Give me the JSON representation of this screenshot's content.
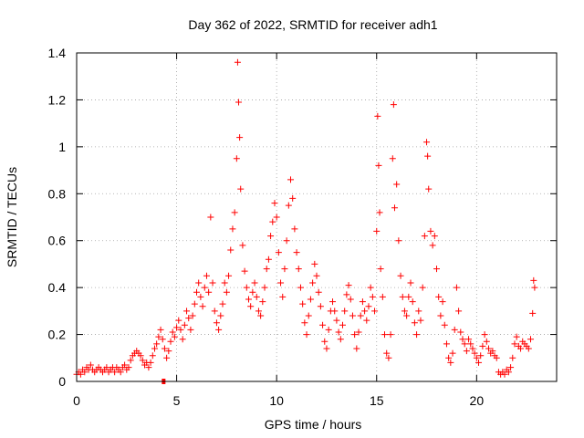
{
  "chart_data": {
    "type": "scatter",
    "title": "Day 362 of 2022, SRMTID for receiver adh1",
    "xlabel": "GPS time / hours",
    "ylabel": "SRMTID / TECUs",
    "xlim": [
      0,
      24
    ],
    "ylim": [
      0,
      1.4
    ],
    "x_ticks": [
      0,
      5,
      10,
      15,
      20
    ],
    "x_tick_labels": [
      "0",
      "5",
      "10",
      "15",
      "20"
    ],
    "y_ticks": [
      0,
      0.2,
      0.4,
      0.6,
      0.8,
      1.0,
      1.2,
      1.4
    ],
    "y_tick_labels": [
      "0",
      "0.2",
      "0.4",
      "0.6",
      "0.8",
      "1",
      "1.2",
      "1.4"
    ],
    "grid": true,
    "marker": "plus",
    "color": "#ff0000",
    "outlier_marker": {
      "x": 4.35,
      "y": 0.0,
      "shape": "square"
    },
    "series": [
      {
        "name": "SRMTID",
        "points": [
          [
            0.0,
            0.03
          ],
          [
            0.1,
            0.04
          ],
          [
            0.2,
            0.03
          ],
          [
            0.3,
            0.05
          ],
          [
            0.4,
            0.04
          ],
          [
            0.5,
            0.06
          ],
          [
            0.6,
            0.05
          ],
          [
            0.7,
            0.07
          ],
          [
            0.8,
            0.05
          ],
          [
            0.9,
            0.04
          ],
          [
            1.0,
            0.05
          ],
          [
            1.1,
            0.06
          ],
          [
            1.2,
            0.05
          ],
          [
            1.3,
            0.04
          ],
          [
            1.4,
            0.05
          ],
          [
            1.5,
            0.06
          ],
          [
            1.6,
            0.04
          ],
          [
            1.7,
            0.05
          ],
          [
            1.8,
            0.06
          ],
          [
            1.9,
            0.04
          ],
          [
            2.0,
            0.06
          ],
          [
            2.1,
            0.05
          ],
          [
            2.2,
            0.04
          ],
          [
            2.3,
            0.06
          ],
          [
            2.4,
            0.07
          ],
          [
            2.5,
            0.05
          ],
          [
            2.6,
            0.06
          ],
          [
            2.7,
            0.09
          ],
          [
            2.8,
            0.11
          ],
          [
            2.9,
            0.12
          ],
          [
            3.0,
            0.13
          ],
          [
            3.1,
            0.12
          ],
          [
            3.2,
            0.11
          ],
          [
            3.3,
            0.09
          ],
          [
            3.4,
            0.07
          ],
          [
            3.5,
            0.08
          ],
          [
            3.6,
            0.06
          ],
          [
            3.7,
            0.08
          ],
          [
            3.8,
            0.11
          ],
          [
            3.9,
            0.14
          ],
          [
            4.0,
            0.16
          ],
          [
            4.1,
            0.19
          ],
          [
            4.2,
            0.22
          ],
          [
            4.3,
            0.18
          ],
          [
            4.4,
            0.14
          ],
          [
            4.5,
            0.1
          ],
          [
            4.6,
            0.13
          ],
          [
            4.7,
            0.17
          ],
          [
            4.8,
            0.21
          ],
          [
            4.9,
            0.19
          ],
          [
            5.0,
            0.23
          ],
          [
            5.1,
            0.26
          ],
          [
            5.2,
            0.22
          ],
          [
            5.3,
            0.18
          ],
          [
            5.4,
            0.24
          ],
          [
            5.5,
            0.3
          ],
          [
            5.6,
            0.27
          ],
          [
            5.7,
            0.22
          ],
          [
            5.8,
            0.28
          ],
          [
            5.9,
            0.33
          ],
          [
            6.0,
            0.38
          ],
          [
            6.1,
            0.42
          ],
          [
            6.2,
            0.36
          ],
          [
            6.3,
            0.32
          ],
          [
            6.4,
            0.4
          ],
          [
            6.5,
            0.45
          ],
          [
            6.6,
            0.38
          ],
          [
            6.7,
            0.7
          ],
          [
            6.8,
            0.42
          ],
          [
            6.9,
            0.3
          ],
          [
            7.0,
            0.25
          ],
          [
            7.1,
            0.22
          ],
          [
            7.2,
            0.28
          ],
          [
            7.3,
            0.33
          ],
          [
            7.4,
            0.42
          ],
          [
            7.5,
            0.38
          ],
          [
            7.6,
            0.45
          ],
          [
            7.7,
            0.56
          ],
          [
            7.8,
            0.65
          ],
          [
            7.9,
            0.72
          ],
          [
            8.0,
            0.95
          ],
          [
            8.05,
            1.36
          ],
          [
            8.1,
            1.19
          ],
          [
            8.15,
            1.04
          ],
          [
            8.2,
            0.82
          ],
          [
            8.3,
            0.58
          ],
          [
            8.4,
            0.47
          ],
          [
            8.5,
            0.4
          ],
          [
            8.6,
            0.35
          ],
          [
            8.7,
            0.32
          ],
          [
            8.8,
            0.38
          ],
          [
            8.9,
            0.42
          ],
          [
            9.0,
            0.36
          ],
          [
            9.1,
            0.3
          ],
          [
            9.2,
            0.28
          ],
          [
            9.3,
            0.34
          ],
          [
            9.4,
            0.4
          ],
          [
            9.5,
            0.48
          ],
          [
            9.6,
            0.52
          ],
          [
            9.7,
            0.62
          ],
          [
            9.8,
            0.68
          ],
          [
            9.9,
            0.76
          ],
          [
            10.0,
            0.7
          ],
          [
            10.1,
            0.55
          ],
          [
            10.2,
            0.42
          ],
          [
            10.3,
            0.36
          ],
          [
            10.4,
            0.48
          ],
          [
            10.5,
            0.6
          ],
          [
            10.6,
            0.75
          ],
          [
            10.7,
            0.86
          ],
          [
            10.8,
            0.78
          ],
          [
            10.9,
            0.65
          ],
          [
            11.0,
            0.55
          ],
          [
            11.1,
            0.48
          ],
          [
            11.2,
            0.4
          ],
          [
            11.3,
            0.33
          ],
          [
            11.4,
            0.25
          ],
          [
            11.5,
            0.2
          ],
          [
            11.6,
            0.28
          ],
          [
            11.7,
            0.35
          ],
          [
            11.8,
            0.42
          ],
          [
            11.9,
            0.5
          ],
          [
            12.0,
            0.45
          ],
          [
            12.1,
            0.38
          ],
          [
            12.2,
            0.32
          ],
          [
            12.3,
            0.24
          ],
          [
            12.4,
            0.17
          ],
          [
            12.5,
            0.14
          ],
          [
            12.6,
            0.22
          ],
          [
            12.7,
            0.3
          ],
          [
            12.8,
            0.34
          ],
          [
            12.9,
            0.3
          ],
          [
            13.0,
            0.26
          ],
          [
            13.1,
            0.21
          ],
          [
            13.2,
            0.18
          ],
          [
            13.3,
            0.24
          ],
          [
            13.4,
            0.3
          ],
          [
            13.5,
            0.37
          ],
          [
            13.6,
            0.41
          ],
          [
            13.7,
            0.35
          ],
          [
            13.8,
            0.28
          ],
          [
            13.9,
            0.2
          ],
          [
            14.0,
            0.14
          ],
          [
            14.1,
            0.21
          ],
          [
            14.2,
            0.28
          ],
          [
            14.3,
            0.34
          ],
          [
            14.4,
            0.3
          ],
          [
            14.5,
            0.26
          ],
          [
            14.6,
            0.32
          ],
          [
            14.7,
            0.4
          ],
          [
            14.8,
            0.36
          ],
          [
            14.9,
            0.3
          ],
          [
            15.0,
            0.64
          ],
          [
            15.05,
            1.13
          ],
          [
            15.1,
            0.92
          ],
          [
            15.15,
            0.72
          ],
          [
            15.2,
            0.48
          ],
          [
            15.3,
            0.36
          ],
          [
            15.4,
            0.2
          ],
          [
            15.5,
            0.12
          ],
          [
            15.6,
            0.1
          ],
          [
            15.7,
            0.2
          ],
          [
            15.8,
            0.95
          ],
          [
            15.85,
            1.18
          ],
          [
            15.9,
            0.74
          ],
          [
            16.0,
            0.84
          ],
          [
            16.1,
            0.6
          ],
          [
            16.2,
            0.45
          ],
          [
            16.3,
            0.36
          ],
          [
            16.4,
            0.3
          ],
          [
            16.5,
            0.28
          ],
          [
            16.6,
            0.36
          ],
          [
            16.7,
            0.42
          ],
          [
            16.8,
            0.34
          ],
          [
            16.9,
            0.25
          ],
          [
            17.0,
            0.2
          ],
          [
            17.1,
            0.3
          ],
          [
            17.2,
            0.26
          ],
          [
            17.3,
            0.4
          ],
          [
            17.4,
            0.62
          ],
          [
            17.5,
            1.02
          ],
          [
            17.55,
            0.96
          ],
          [
            17.6,
            0.82
          ],
          [
            17.7,
            0.64
          ],
          [
            17.8,
            0.58
          ],
          [
            17.9,
            0.62
          ],
          [
            18.0,
            0.48
          ],
          [
            18.1,
            0.36
          ],
          [
            18.2,
            0.28
          ],
          [
            18.3,
            0.34
          ],
          [
            18.4,
            0.24
          ],
          [
            18.5,
            0.16
          ],
          [
            18.6,
            0.1
          ],
          [
            18.7,
            0.08
          ],
          [
            18.8,
            0.12
          ],
          [
            18.9,
            0.22
          ],
          [
            19.0,
            0.4
          ],
          [
            19.1,
            0.3
          ],
          [
            19.2,
            0.21
          ],
          [
            19.3,
            0.18
          ],
          [
            19.4,
            0.16
          ],
          [
            19.5,
            0.13
          ],
          [
            19.6,
            0.18
          ],
          [
            19.7,
            0.16
          ],
          [
            19.8,
            0.14
          ],
          [
            19.9,
            0.12
          ],
          [
            20.0,
            0.1
          ],
          [
            20.1,
            0.08
          ],
          [
            20.2,
            0.11
          ],
          [
            20.3,
            0.15
          ],
          [
            20.4,
            0.2
          ],
          [
            20.5,
            0.17
          ],
          [
            20.6,
            0.14
          ],
          [
            20.7,
            0.12
          ],
          [
            20.8,
            0.13
          ],
          [
            20.9,
            0.11
          ],
          [
            21.0,
            0.1
          ],
          [
            21.1,
            0.04
          ],
          [
            21.2,
            0.03
          ],
          [
            21.3,
            0.04
          ],
          [
            21.4,
            0.03
          ],
          [
            21.5,
            0.05
          ],
          [
            21.6,
            0.04
          ],
          [
            21.7,
            0.06
          ],
          [
            21.8,
            0.1
          ],
          [
            21.9,
            0.16
          ],
          [
            22.0,
            0.19
          ],
          [
            22.1,
            0.15
          ],
          [
            22.2,
            0.14
          ],
          [
            22.3,
            0.17
          ],
          [
            22.4,
            0.16
          ],
          [
            22.5,
            0.15
          ],
          [
            22.6,
            0.14
          ],
          [
            22.7,
            0.18
          ],
          [
            22.8,
            0.29
          ],
          [
            22.85,
            0.43
          ],
          [
            22.9,
            0.4
          ]
        ]
      }
    ]
  }
}
